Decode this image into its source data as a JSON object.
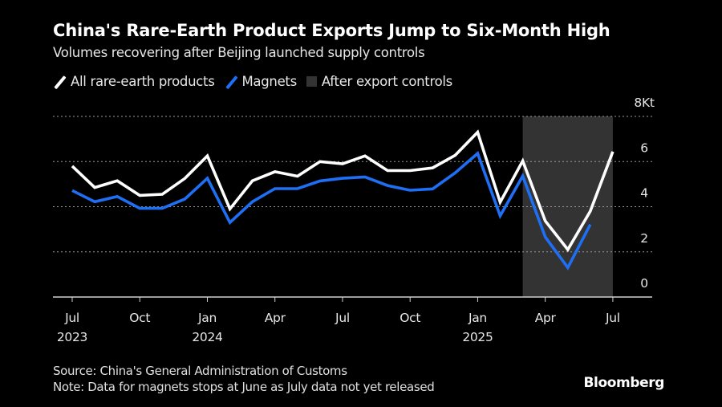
{
  "header": {
    "title": "China's Rare-Earth Product Exports Jump to Six-Month High",
    "subtitle": "Volumes recovering after Beijing launched supply controls"
  },
  "legend": [
    {
      "label": "All rare-earth products",
      "type": "line",
      "color": "#ffffff",
      "icon": "line-swatch-icon"
    },
    {
      "label": "Magnets",
      "type": "line",
      "color": "#1f6ff5",
      "icon": "line-swatch-icon"
    },
    {
      "label": "After export controls",
      "type": "box",
      "color": "#333333",
      "icon": "box-swatch-icon"
    }
  ],
  "footer": {
    "source": "Source: China's General Administration of Customs",
    "note": "Note: Data for magnets stops at June as July data not yet released",
    "brand": "Bloomberg"
  },
  "chart_data": {
    "type": "line",
    "title": "China's Rare-Earth Product Exports Jump to Six-Month High",
    "subtitle": "Volumes recovering after Beijing launched supply controls",
    "xlabel": "",
    "ylabel": "",
    "y_unit_label": "8Kt",
    "ylim": [
      0,
      8
    ],
    "yticks": [
      0,
      2,
      4,
      6,
      8
    ],
    "ytick_labels": [
      "0",
      "2",
      "4",
      "6",
      "8Kt"
    ],
    "y_axis_side": "right",
    "grid": "horizontal-dotted",
    "x": [
      "2023-07",
      "2023-08",
      "2023-09",
      "2023-10",
      "2023-11",
      "2023-12",
      "2024-01",
      "2024-02",
      "2024-03",
      "2024-04",
      "2024-05",
      "2024-06",
      "2024-07",
      "2024-08",
      "2024-09",
      "2024-10",
      "2024-11",
      "2024-12",
      "2025-01",
      "2025-02",
      "2025-03",
      "2025-04",
      "2025-05",
      "2025-06",
      "2025-07"
    ],
    "xticks": [
      {
        "index": 0,
        "label": "Jul",
        "year": "2023"
      },
      {
        "index": 3,
        "label": "Oct",
        "year": ""
      },
      {
        "index": 6,
        "label": "Jan",
        "year": "2024"
      },
      {
        "index": 9,
        "label": "Apr",
        "year": ""
      },
      {
        "index": 12,
        "label": "Jul",
        "year": ""
      },
      {
        "index": 15,
        "label": "Oct",
        "year": ""
      },
      {
        "index": 18,
        "label": "Jan",
        "year": "2025"
      },
      {
        "index": 21,
        "label": "Apr",
        "year": ""
      },
      {
        "index": 24,
        "label": "Jul",
        "year": ""
      }
    ],
    "series": [
      {
        "name": "All rare-earth products",
        "color": "#ffffff",
        "values": [
          5.8,
          4.85,
          5.15,
          4.5,
          4.55,
          5.25,
          6.25,
          3.9,
          5.15,
          5.55,
          5.35,
          6.0,
          5.9,
          6.25,
          5.6,
          5.6,
          5.72,
          6.28,
          7.3,
          4.2,
          6.03,
          3.37,
          2.1,
          3.8,
          6.44
        ]
      },
      {
        "name": "Magnets",
        "color": "#1f6ff5",
        "values": [
          4.72,
          4.22,
          4.45,
          3.93,
          3.93,
          4.34,
          5.26,
          3.3,
          4.22,
          4.8,
          4.8,
          5.14,
          5.26,
          5.32,
          4.94,
          4.73,
          4.79,
          5.5,
          6.36,
          3.6,
          5.36,
          2.66,
          1.3,
          3.21,
          null
        ]
      }
    ],
    "shaded_regions": [
      {
        "label": "After export controls",
        "start": "2025-03",
        "end": "2025-07",
        "color": "#333333"
      }
    ],
    "legend_position": "top-left"
  }
}
